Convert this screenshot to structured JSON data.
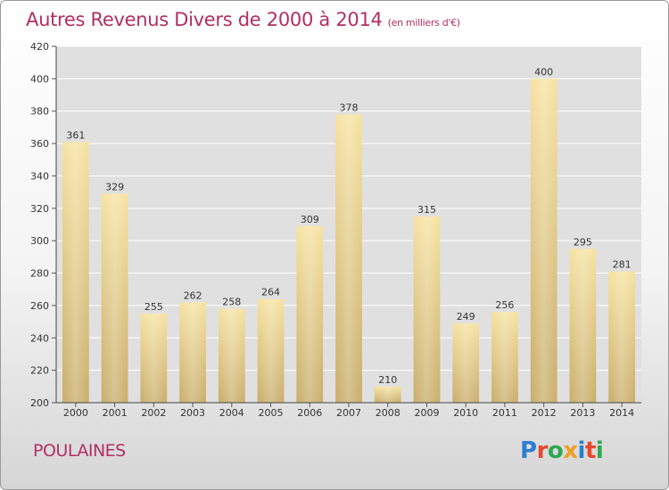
{
  "title": "Autres Revenus Divers de 2000 à 2014",
  "subtitle": "(en milliers d'€)",
  "commune": "POULAINES",
  "logo": {
    "text": "Proxiti",
    "colors": [
      "#2a7fd0",
      "#e8482c",
      "#2fa84f",
      "#f0a020",
      "#2a7fd0",
      "#e8482c",
      "#2fa84f"
    ]
  },
  "chart_data": {
    "type": "bar",
    "categories": [
      "2000",
      "2001",
      "2002",
      "2003",
      "2004",
      "2005",
      "2006",
      "2007",
      "2008",
      "2009",
      "2010",
      "2011",
      "2012",
      "2013",
      "2014"
    ],
    "values": [
      361,
      329,
      255,
      262,
      258,
      264,
      309,
      378,
      210,
      315,
      249,
      256,
      400,
      295,
      281
    ],
    "ylim": [
      200,
      420
    ],
    "yticks": [
      200,
      220,
      240,
      260,
      280,
      300,
      320,
      340,
      360,
      380,
      400,
      420
    ],
    "grid": true,
    "data_labels": true,
    "colors": {
      "bar_light": "#f6e2a0",
      "bar_dark": "#c9ad6a",
      "grid": "#ffffff",
      "plot_bg": "#e0e0e0"
    }
  }
}
